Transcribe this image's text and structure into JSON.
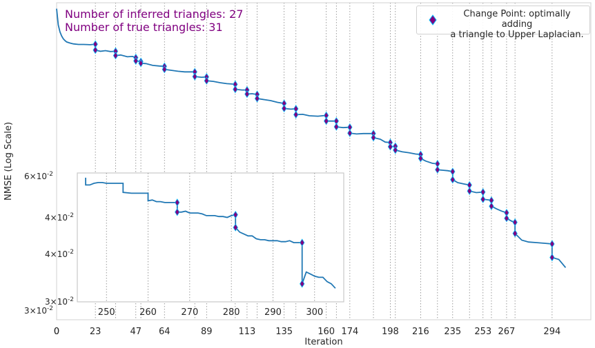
{
  "chart_data": {
    "type": "line",
    "title": "",
    "xlabel": "Iteration",
    "ylabel": "NMSE (Log Scale)",
    "yscale": "log",
    "xlim": [
      0,
      317
    ],
    "ylim": [
      0.0288,
      0.1045
    ],
    "grid": "vertical dotted lines at change points",
    "legend_placement": "top-right",
    "x_tick_labels": [
      "0",
      "0",
      "23",
      "47",
      "64",
      "89",
      "113",
      "135",
      "160",
      "174",
      "198",
      "216",
      "235",
      "253",
      "267",
      "294"
    ],
    "y_tick_labels": [
      "6 × 10^-2",
      "3 × 10^-2"
    ],
    "change_point_x": [
      23,
      35,
      47,
      50,
      64,
      82,
      89,
      106,
      113,
      119,
      135,
      142,
      160,
      166,
      174,
      188,
      198,
      201,
      216,
      226,
      235,
      245,
      253,
      258,
      267,
      272,
      294
    ],
    "series": [
      {
        "name": "",
        "color": "#1f77b4",
        "x": [
          0,
          1,
          2,
          3,
          4,
          5,
          6,
          8,
          10,
          13,
          16,
          20,
          23,
          23,
          26,
          29,
          32,
          35,
          35,
          38,
          42,
          45,
          47,
          47,
          50,
          50,
          53,
          57,
          61,
          64,
          64,
          68,
          72,
          76,
          79,
          82,
          82,
          86,
          89,
          89,
          93,
          97,
          101,
          104,
          106,
          106,
          110,
          113,
          113,
          116,
          119,
          119,
          123,
          127,
          131,
          135,
          135,
          139,
          142,
          142,
          146,
          150,
          155,
          160,
          160,
          163,
          166,
          166,
          170,
          174,
          174,
          178,
          182,
          186,
          188,
          188,
          192,
          195,
          198,
          198,
          201,
          201,
          205,
          209,
          213,
          216,
          216,
          219,
          223,
          226,
          226,
          229,
          232,
          235,
          235,
          238,
          242,
          245,
          245,
          249,
          253,
          253,
          256,
          258,
          258,
          261,
          264,
          267,
          267,
          270,
          272,
          272,
          276,
          280,
          285,
          290,
          294,
          294,
          298,
          302
        ],
        "y": [
          0.102,
          0.0955,
          0.0928,
          0.0913,
          0.0902,
          0.0896,
          0.0891,
          0.0887,
          0.0884,
          0.0882,
          0.0882,
          0.0881,
          0.0883,
          0.0862,
          0.0858,
          0.086,
          0.0857,
          0.0858,
          0.0843,
          0.0845,
          0.0839,
          0.084,
          0.0836,
          0.0825,
          0.0823,
          0.0817,
          0.0816,
          0.081,
          0.0808,
          0.0807,
          0.0797,
          0.0794,
          0.0791,
          0.0789,
          0.0789,
          0.0789,
          0.0774,
          0.0772,
          0.0773,
          0.0761,
          0.0759,
          0.0755,
          0.0752,
          0.0751,
          0.075,
          0.0735,
          0.0733,
          0.0733,
          0.0721,
          0.0722,
          0.072,
          0.0708,
          0.0705,
          0.0702,
          0.0697,
          0.0694,
          0.068,
          0.0678,
          0.0679,
          0.0663,
          0.0664,
          0.066,
          0.0659,
          0.0661,
          0.0646,
          0.0646,
          0.0646,
          0.0631,
          0.0629,
          0.063,
          0.0615,
          0.0613,
          0.0614,
          0.0614,
          0.0614,
          0.0604,
          0.06,
          0.0593,
          0.0592,
          0.0582,
          0.0583,
          0.0574,
          0.057,
          0.0568,
          0.0565,
          0.0564,
          0.0555,
          0.0549,
          0.0544,
          0.0543,
          0.053,
          0.0529,
          0.0528,
          0.0526,
          0.0509,
          0.0503,
          0.05,
          0.0498,
          0.0486,
          0.0483,
          0.0484,
          0.047,
          0.0469,
          0.0468,
          0.0457,
          0.0452,
          0.0448,
          0.0445,
          0.0435,
          0.043,
          0.0428,
          0.0409,
          0.0398,
          0.0395,
          0.0394,
          0.0393,
          0.0392,
          0.0371,
          0.0368,
          0.0356
        ]
      }
    ],
    "annotations": [
      "Number of inferred triangles: 27",
      "Number of true triangles: 31"
    ],
    "legend": [
      "Change Point: optimally adding",
      "a triangle to Upper Laplacian."
    ],
    "inset": {
      "type": "line",
      "xlim": [
        243,
        307
      ],
      "ylim": [
        0.0287,
        0.0423
      ],
      "yscale": "log",
      "x_tick_labels": [
        "250",
        "260",
        "270",
        "280",
        "290",
        "300"
      ],
      "x_ticks": [
        250,
        260,
        270,
        280,
        290,
        300
      ],
      "y_tick_labels": [
        "4 × 10^-2",
        "4 × 10^-2",
        "3 × 10^-2"
      ],
      "change_point_x": [
        267,
        281,
        297
      ],
      "x": [
        245,
        245,
        246,
        247,
        248,
        249,
        250,
        252,
        254,
        254,
        256,
        258,
        260,
        260,
        261,
        262,
        263,
        264,
        265,
        266,
        267,
        267,
        268,
        269,
        270,
        272,
        273,
        274,
        275,
        276,
        277,
        278,
        279,
        280,
        281,
        281,
        282,
        283,
        284,
        285,
        286,
        287,
        288,
        289,
        290,
        291,
        292,
        293,
        294,
        295,
        296,
        297,
        297,
        298,
        299,
        300,
        301,
        302,
        303,
        304,
        305
      ],
      "y": [
        0.0417,
        0.0408,
        0.0408,
        0.041,
        0.0411,
        0.0411,
        0.041,
        0.041,
        0.041,
        0.0399,
        0.0398,
        0.0398,
        0.0398,
        0.0389,
        0.039,
        0.0388,
        0.0388,
        0.0387,
        0.0387,
        0.0387,
        0.0387,
        0.0376,
        0.0376,
        0.0377,
        0.0375,
        0.0375,
        0.0374,
        0.0372,
        0.0372,
        0.0372,
        0.0371,
        0.0371,
        0.037,
        0.0372,
        0.0373,
        0.0359,
        0.0354,
        0.0352,
        0.035,
        0.035,
        0.0347,
        0.0346,
        0.0346,
        0.0345,
        0.0345,
        0.0345,
        0.0344,
        0.0344,
        0.0345,
        0.0343,
        0.0343,
        0.0343,
        0.0303,
        0.0314,
        0.0312,
        0.031,
        0.0309,
        0.0309,
        0.0305,
        0.0303,
        0.0299
      ]
    },
    "colors": {
      "line": "#1f77b4",
      "marker_fill": "#800080",
      "marker_edge": "#00bfff",
      "annotation_text": "#800080",
      "grid": "#808080"
    }
  }
}
